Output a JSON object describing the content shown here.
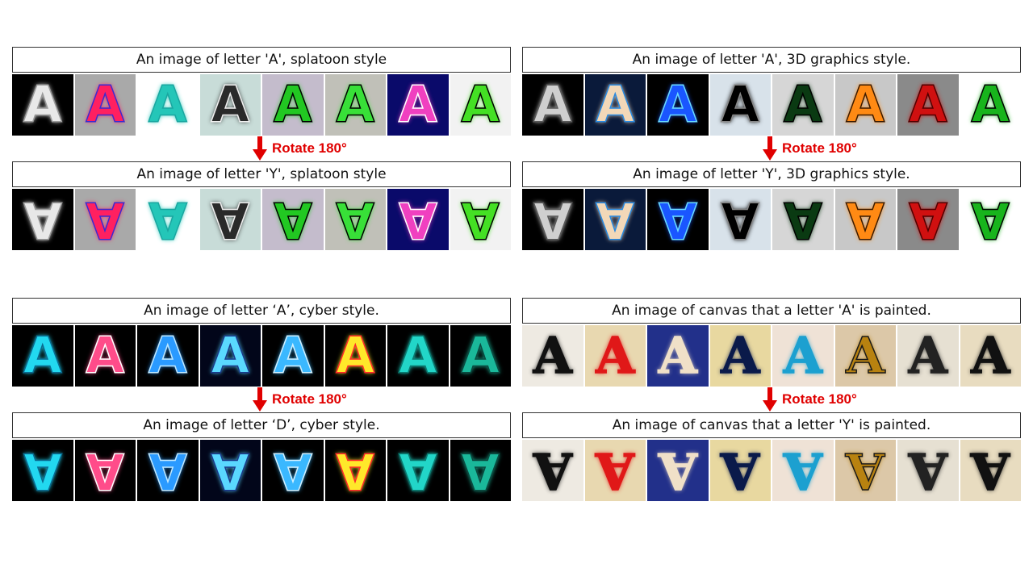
{
  "rotate_label": "Rotate 180°",
  "panels": [
    {
      "top_caption": "An image of letter 'A', splatoon style",
      "bottom_caption": "An image of letter 'Y', splatoon style",
      "tiles": [
        {
          "bg": "#000000",
          "fg": "#e8e8e8",
          "stroke": "#9a9a9a"
        },
        {
          "bg": "#a9a9a9",
          "fg": "#ff2060",
          "stroke": "#3a2cd0"
        },
        {
          "bg": "#ffffff",
          "fg": "#24c6b8",
          "stroke": "#1aa6a0"
        },
        {
          "bg": "#c8dcd8",
          "fg": "#2a2a2a",
          "stroke": "#f0f0f0"
        },
        {
          "bg": "#c4bccc",
          "fg": "#22c822",
          "stroke": "#000000"
        },
        {
          "bg": "#c0c0b8",
          "fg": "#38e038",
          "stroke": "#000000"
        },
        {
          "bg": "#0a0a6a",
          "fg": "#f040c0",
          "stroke": "#ffffff"
        },
        {
          "bg": "#f2f2f2",
          "fg": "#44e024",
          "stroke": "#000000"
        }
      ]
    },
    {
      "top_caption": "An image of letter 'A', 3D graphics style.",
      "bottom_caption": "An image of letter 'Y', 3D graphics style.",
      "tiles": [
        {
          "bg": "#000000",
          "fg": "#cfcfcf",
          "stroke": "#5a5a5a"
        },
        {
          "bg": "#0a1a3a",
          "fg": "#f2d8b8",
          "stroke": "#2a8ae0"
        },
        {
          "bg": "#000000",
          "fg": "#1a56ff",
          "stroke": "#6adcff"
        },
        {
          "bg": "#d8e2ea",
          "fg": "#000000",
          "stroke": "#888888"
        },
        {
          "bg": "#d6d6d6",
          "fg": "#0a3a12",
          "stroke": "#000000"
        },
        {
          "bg": "#c8c8c8",
          "fg": "#ff8a14",
          "stroke": "#3a1a00"
        },
        {
          "bg": "#8a8a8a",
          "fg": "#d01010",
          "stroke": "#500000"
        },
        {
          "bg": "#ffffff",
          "fg": "#18b41c",
          "stroke": "#000000"
        }
      ]
    },
    {
      "top_caption": "An image of letter ‘A’, cyber style.",
      "bottom_caption": "An image of letter ‘D’, cyber style.",
      "tiles": [
        {
          "bg": "#000000",
          "fg": "#22d8f0",
          "stroke": "#0a6a90"
        },
        {
          "bg": "#000000",
          "fg": "#ff4c8a",
          "stroke": "#ffffff"
        },
        {
          "bg": "#000000",
          "fg": "#2a9aff",
          "stroke": "#bfe8ff"
        },
        {
          "bg": "#02061a",
          "fg": "#5ad8ff",
          "stroke": "#1a3a8a"
        },
        {
          "bg": "#000000",
          "fg": "#3ab8ff",
          "stroke": "#d0f0ff"
        },
        {
          "bg": "#000000",
          "fg": "#ffe82a",
          "stroke": "#ff2a2a"
        },
        {
          "bg": "#000000",
          "fg": "#22d6c8",
          "stroke": "#0a7a70"
        },
        {
          "bg": "#000000",
          "fg": "#1ab89a",
          "stroke": "#0a4a40"
        }
      ]
    },
    {
      "top_caption": "An image of canvas that a letter 'A' is painted.",
      "bottom_caption": "An image of canvas that a letter 'Y' is painted.",
      "tiles": [
        {
          "bg": "#eeeae2",
          "fg": "#111111",
          "stroke": "#111111"
        },
        {
          "bg": "#e8d8b0",
          "fg": "#e01818",
          "stroke": "#e01818"
        },
        {
          "bg": "#22308a",
          "fg": "#f0e0c8",
          "stroke": "#f0e0c8"
        },
        {
          "bg": "#e8d8a0",
          "fg": "#0a1a4a",
          "stroke": "#0a1a4a"
        },
        {
          "bg": "#efe2d6",
          "fg": "#1ca0d0",
          "stroke": "#1ca0d0"
        },
        {
          "bg": "#dcc8a8",
          "fg": "#b88210",
          "stroke": "#1a1a1a"
        },
        {
          "bg": "#e6e0d2",
          "fg": "#222222",
          "stroke": "#222222"
        },
        {
          "bg": "#e8dcc0",
          "fg": "#111111",
          "stroke": "#111111"
        }
      ]
    }
  ]
}
